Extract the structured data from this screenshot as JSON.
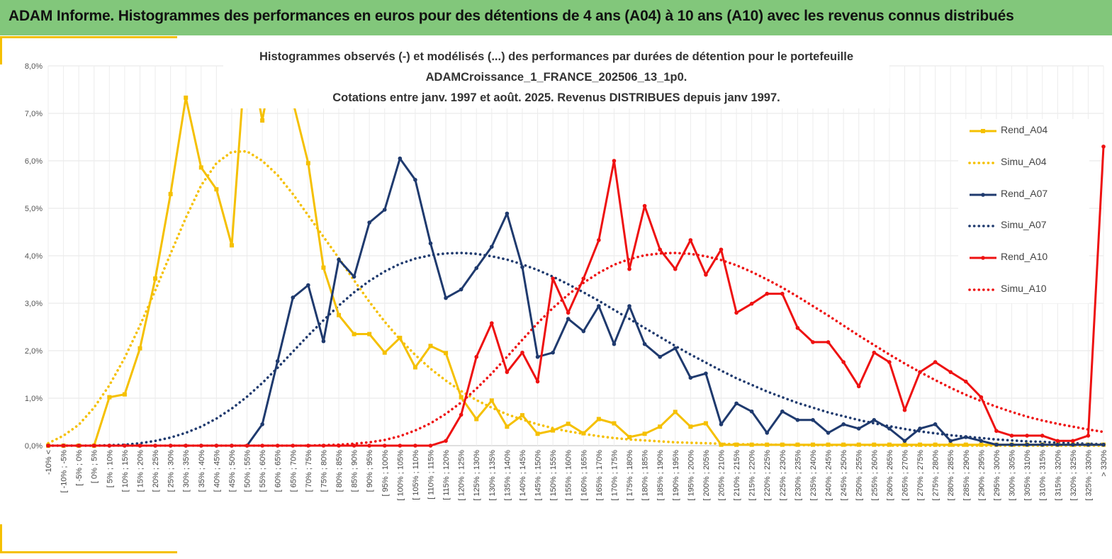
{
  "banner": {
    "title": "ADAM Informe. Histogrammes des performances en euros pour des détentions de 4 ans (A04) à 10 ans (A10) avec les revenus connus distribués"
  },
  "colors": {
    "banner_bg": "#82c77b",
    "accent": "#f5c000",
    "a04": "#f5c000",
    "a07": "#1f3a6e",
    "a10": "#ee1111"
  },
  "chart_data": {
    "type": "line",
    "title_lines": [
      "Histogrammes observés (-) et modélisés (...) des performances  par durées de détention pour le portefeuille",
      "ADAMCroissance_1_FRANCE_202506_13_1p0.",
      "Cotations  entre janv. 1997 et août. 2025. Revenus DISTRIBUES depuis janv 1997."
    ],
    "y_ticks": [
      "0,0%",
      "1,0%",
      "2,0%",
      "3,0%",
      "4,0%",
      "5,0%",
      "6,0%",
      "7,0%",
      "8,0%"
    ],
    "ylim": [
      0,
      8
    ],
    "grid": true,
    "legend_position": "right",
    "categories": [
      "-10% <",
      "[ -10% ; -5%",
      "[ -5% ; 0%",
      "[ 0% ; 5%",
      "[ 5% ; 10%",
      "[ 10% ; 15%",
      "[ 15% ; 20%",
      "[ 20% ; 25%",
      "[ 25% ; 30%",
      "[ 30% ; 35%",
      "[ 35% ; 40%",
      "[ 40% ; 45%",
      "[ 45% ; 50%",
      "[ 50% ; 55%",
      "[ 55% ; 60%",
      "[ 60% ; 65%",
      "[ 65% ; 70%",
      "[ 70% ; 75%",
      "[ 75% ; 80%",
      "[ 80% ; 85%",
      "[ 85% ; 90%",
      "[ 90% ; 95%",
      "[ 95% ; 100%",
      "[ 100% ; 105%",
      "[ 105% ; 110%",
      "[ 110% ; 115%",
      "[ 115% ; 120%",
      "[ 120% ; 125%",
      "[ 125% ; 130%",
      "[ 130% ; 135%",
      "[ 135% ; 140%",
      "[ 140% ; 145%",
      "[ 145% ; 150%",
      "[ 150% ; 155%",
      "[ 155% ; 160%",
      "[ 160% ; 165%",
      "[ 165% ; 170%",
      "[ 170% ; 175%",
      "[ 175% ; 180%",
      "[ 180% ; 185%",
      "[ 185% ; 190%",
      "[ 190% ; 195%",
      "[ 195% ; 200%",
      "[ 200% ; 205%",
      "[ 205% ; 210%",
      "[ 210% ; 215%",
      "[ 215% ; 220%",
      "[ 220% ; 225%",
      "[ 225% ; 230%",
      "[ 230% ; 235%",
      "[ 235% ; 240%",
      "[ 240% ; 245%",
      "[ 245% ; 250%",
      "[ 250% ; 255%",
      "[ 255% ; 260%",
      "[ 260% ; 265%",
      "[ 265% ; 270%",
      "[ 270% ; 275%",
      "[ 275% ; 280%",
      "[ 280% ; 285%",
      "[ 285% ; 290%",
      "[ 290% ; 295%",
      "[ 295% ; 300%",
      "[ 300% ; 305%",
      "[ 305% ; 310%",
      "[ 310% ; 315%",
      "[ 315% ; 320%",
      "[ 320% ; 325%",
      "[ 325% ; 330%",
      "> 330%"
    ],
    "series": [
      {
        "name": "Rend_A04",
        "style": "solid",
        "marker": "square",
        "color": "#f5c000",
        "values": [
          0,
          0,
          0,
          0,
          1.02,
          1.08,
          2.05,
          3.52,
          5.3,
          7.33,
          5.86,
          5.4,
          4.22,
          8.6,
          6.85,
          8.6,
          7.25,
          5.95,
          3.75,
          2.75,
          2.35,
          2.35,
          1.96,
          2.27,
          1.65,
          2.1,
          1.95,
          1.02,
          0.56,
          0.95,
          0.4,
          0.64,
          0.25,
          0.32,
          0.46,
          0.26,
          0.56,
          0.47,
          0.18,
          0.25,
          0.4,
          0.71,
          0.4,
          0.47,
          0.02,
          0.02,
          0.02,
          0.02,
          0.02,
          0.02,
          0.02,
          0.02,
          0.02,
          0.02,
          0.02,
          0.02,
          0.02,
          0.02,
          0.02,
          0.02,
          0.02,
          0.02,
          0.02,
          0.02,
          0.02,
          0.02,
          0.02,
          0.02,
          0.02,
          0.02
        ]
      },
      {
        "name": "Simu_A04",
        "style": "dotted",
        "marker": "none",
        "color": "#f5c000",
        "values": [
          0.05,
          0.21,
          0.44,
          0.8,
          1.27,
          1.85,
          2.53,
          3.27,
          4.04,
          4.8,
          5.48,
          5.95,
          6.19,
          6.2,
          6.0,
          5.7,
          5.3,
          4.85,
          4.4,
          3.95,
          3.48,
          3.03,
          2.61,
          2.24,
          1.91,
          1.62,
          1.37,
          1.15,
          0.96,
          0.8,
          0.66,
          0.55,
          0.45,
          0.37,
          0.3,
          0.25,
          0.2,
          0.16,
          0.13,
          0.11,
          0.09,
          0.07,
          0.06,
          0.05,
          0.04,
          0.03,
          0.03,
          0.02,
          0.02,
          0.01,
          0.01,
          0.01,
          0.01,
          0.01,
          0.01,
          0,
          0,
          0,
          0,
          0,
          0,
          0,
          0,
          0,
          0,
          0,
          0,
          0,
          0,
          0
        ]
      },
      {
        "name": "Rend_A07",
        "style": "solid",
        "marker": "circle",
        "color": "#1f3a6e",
        "values": [
          0,
          0,
          0,
          0,
          0,
          0,
          0,
          0,
          0,
          0,
          0,
          0,
          0,
          0,
          0.45,
          1.78,
          3.12,
          3.38,
          2.2,
          3.92,
          3.56,
          4.7,
          4.97,
          6.05,
          5.6,
          4.26,
          3.11,
          3.29,
          3.74,
          4.19,
          4.89,
          3.76,
          1.87,
          1.96,
          2.67,
          2.41,
          2.94,
          2.14,
          2.94,
          2.14,
          1.87,
          2.05,
          1.43,
          1.52,
          0.45,
          0.89,
          0.72,
          0.27,
          0.72,
          0.54,
          0.54,
          0.27,
          0.45,
          0.36,
          0.54,
          0.36,
          0.1,
          0.36,
          0.45,
          0.1,
          0.18,
          0.1,
          0.02,
          0.02,
          0.02,
          0.02,
          0.02,
          0.02,
          0.02,
          0.02
        ]
      },
      {
        "name": "Simu_A07",
        "style": "dotted",
        "marker": "none",
        "color": "#1f3a6e",
        "values": [
          0,
          0,
          0,
          0,
          0.01,
          0.02,
          0.05,
          0.1,
          0.17,
          0.27,
          0.4,
          0.57,
          0.78,
          1.03,
          1.32,
          1.64,
          1.98,
          2.32,
          2.64,
          2.95,
          3.23,
          3.47,
          3.67,
          3.83,
          3.94,
          4.01,
          4.05,
          4.06,
          4.04,
          3.99,
          3.92,
          3.82,
          3.7,
          3.56,
          3.4,
          3.23,
          3.05,
          2.86,
          2.67,
          2.48,
          2.29,
          2.1,
          1.92,
          1.75,
          1.58,
          1.42,
          1.28,
          1.14,
          1.02,
          0.9,
          0.8,
          0.7,
          0.62,
          0.54,
          0.47,
          0.41,
          0.35,
          0.3,
          0.26,
          0.22,
          0.19,
          0.16,
          0.13,
          0.11,
          0.09,
          0.08,
          0.06,
          0.05,
          0.04,
          0.03
        ]
      },
      {
        "name": "Rend_A10",
        "style": "solid",
        "marker": "circle",
        "color": "#ee1111",
        "values": [
          0,
          0,
          0,
          0,
          0,
          0,
          0,
          0,
          0,
          0,
          0,
          0,
          0,
          0,
          0,
          0,
          0,
          0,
          0,
          0,
          0,
          0,
          0,
          0,
          0,
          0,
          0.1,
          0.65,
          1.87,
          2.58,
          1.55,
          1.96,
          1.35,
          3.52,
          2.8,
          3.52,
          4.33,
          6.0,
          3.72,
          5.05,
          4.13,
          3.72,
          4.33,
          3.6,
          4.13,
          2.8,
          2.99,
          3.2,
          3.2,
          2.48,
          2.18,
          2.18,
          1.76,
          1.25,
          1.96,
          1.76,
          0.75,
          1.55,
          1.76,
          1.55,
          1.35,
          1.02,
          0.31,
          0.21,
          0.21,
          0.21,
          0.1,
          0.1,
          0.21,
          6.3
        ]
      },
      {
        "name": "Simu_A10",
        "style": "dotted",
        "marker": "none",
        "color": "#ee1111",
        "values": [
          0,
          0,
          0,
          0,
          0,
          0,
          0,
          0,
          0,
          0,
          0,
          0,
          0,
          0,
          0,
          0,
          0,
          0,
          0.01,
          0.02,
          0.04,
          0.07,
          0.12,
          0.2,
          0.32,
          0.47,
          0.67,
          0.91,
          1.2,
          1.52,
          1.87,
          2.23,
          2.58,
          2.9,
          3.18,
          3.43,
          3.64,
          3.81,
          3.93,
          4.01,
          4.05,
          4.06,
          4.04,
          3.99,
          3.91,
          3.8,
          3.66,
          3.5,
          3.33,
          3.14,
          2.94,
          2.74,
          2.53,
          2.32,
          2.12,
          1.92,
          1.73,
          1.55,
          1.38,
          1.22,
          1.07,
          0.94,
          0.82,
          0.71,
          0.61,
          0.53,
          0.46,
          0.4,
          0.34,
          0.29
        ]
      }
    ]
  }
}
